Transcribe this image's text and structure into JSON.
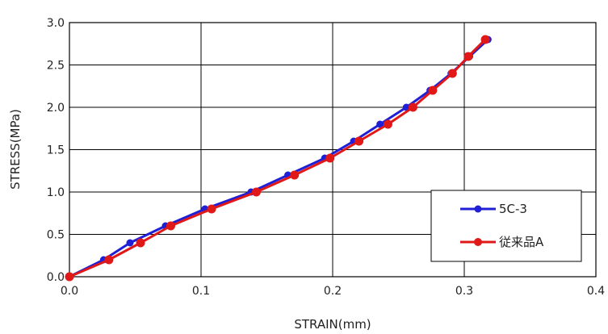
{
  "chart_data": {
    "type": "line",
    "title": "",
    "xlabel": "STRAIN(mm)",
    "ylabel": "STRESS(MPa)",
    "xlim": [
      0,
      0.4
    ],
    "ylim": [
      0,
      3.0
    ],
    "x_ticks": [
      "0.0",
      "0.1",
      "0.2",
      "0.3",
      "0.4"
    ],
    "y_ticks": [
      "0.0",
      "0.5",
      "1.0",
      "1.5",
      "2.0",
      "2.5",
      "3.0"
    ],
    "x_tick_values": [
      0,
      0.1,
      0.2,
      0.3,
      0.4
    ],
    "y_tick_values": [
      0,
      0.5,
      1.0,
      1.5,
      2.0,
      2.5,
      3.0
    ],
    "grid": true,
    "legend_position": "bottom-right",
    "series": [
      {
        "name": "5C-3",
        "color": "#1f1fd6",
        "marker": "circle",
        "x": [
          0,
          0.026,
          0.046,
          0.073,
          0.103,
          0.138,
          0.166,
          0.194,
          0.216,
          0.236,
          0.256,
          0.274,
          0.29,
          0.304,
          0.318
        ],
        "y": [
          0,
          0.2,
          0.4,
          0.6,
          0.8,
          1.0,
          1.2,
          1.4,
          1.6,
          1.8,
          2.0,
          2.2,
          2.4,
          2.6,
          2.8
        ]
      },
      {
        "name": "従来品A",
        "color": "#e01818",
        "marker": "circle",
        "x": [
          0,
          0.03,
          0.054,
          0.077,
          0.108,
          0.142,
          0.171,
          0.198,
          0.22,
          0.242,
          0.261,
          0.276,
          0.291,
          0.303,
          0.316
        ],
        "y": [
          0,
          0.2,
          0.4,
          0.6,
          0.8,
          1.0,
          1.2,
          1.4,
          1.6,
          1.8,
          2.0,
          2.2,
          2.4,
          2.6,
          2.8
        ]
      }
    ]
  }
}
